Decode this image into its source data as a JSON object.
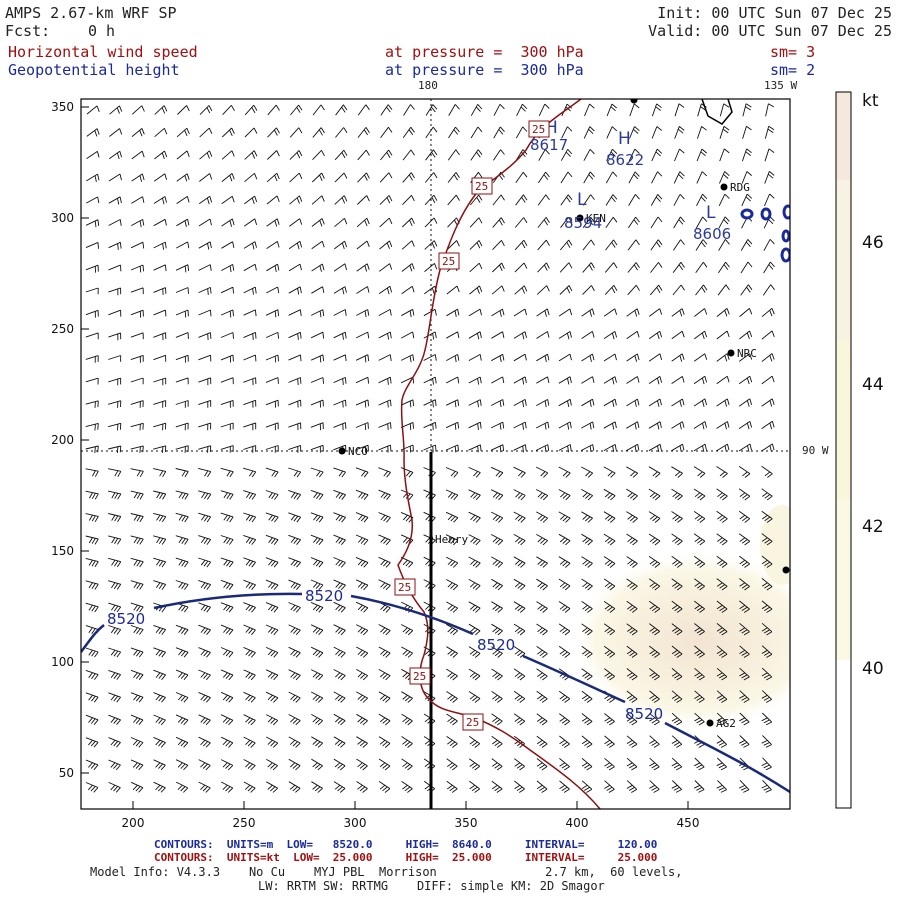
{
  "header": {
    "title": "AMPS 2.67-km WRF SP",
    "init": "Init: 00 UTC Sun 07 Dec 25",
    "fcst_label": "Fcst:",
    "fcst_value": "0 h",
    "valid": "Valid: 00 UTC Sun 07 Dec 25"
  },
  "fields": [
    {
      "name": "Horizontal wind speed",
      "level": "at pressure =  300 hPa",
      "sm": "sm= 3",
      "color": "#a01010"
    },
    {
      "name": "Geopotential height",
      "level": "at pressure =  300 hPa",
      "sm": "sm= 2",
      "color": "#1a2a9a"
    }
  ],
  "top_labels": {
    "lon_180": "180",
    "lon_135w": "135 W"
  },
  "right_labels": {
    "lon_90w": "90 W"
  },
  "x_ticks": [
    "200",
    "250",
    "300",
    "350",
    "400",
    "450"
  ],
  "y_ticks": [
    "350",
    "300",
    "250",
    "200",
    "150",
    "100",
    "50"
  ],
  "colorbar": {
    "unit": "kt",
    "labels": [
      "46",
      "44",
      "42",
      "40"
    ],
    "colors": [
      "#f5e8dc",
      "#f7f2e2",
      "#faf6dc",
      "#fbf9e4",
      "#ffffff"
    ]
  },
  "stations": [
    {
      "label": "NCO"
    },
    {
      "label": "Henry"
    },
    {
      "label": "RDG"
    },
    {
      "label": "NRC"
    },
    {
      "label": "AG2"
    },
    {
      "label": "KEN"
    }
  ],
  "pressure_centers": [
    {
      "letter": "H",
      "value": "8617"
    },
    {
      "letter": "H",
      "value": "8622"
    },
    {
      "letter": "L",
      "value": "8594"
    },
    {
      "letter": "L",
      "value": "8606"
    }
  ],
  "contour_labels": {
    "height": [
      "8520",
      "8520",
      "8520",
      "8520"
    ],
    "speed": [
      "25",
      "25",
      "25",
      "25",
      "25",
      "25"
    ]
  },
  "footer": {
    "contours_line1": "CONTOURS:  UNITS=m  LOW=   8520.0     HIGH=  8640.0     INTERVAL=     120.00",
    "contours_line2": "CONTOURS:  UNITS=kt  LOW=  25.000     HIGH=  25.000     INTERVAL=     25.000",
    "model_line1": "Model Info: V4.3.3    No Cu    MYJ PBL  Morrison               2.7 km,  60 levels,",
    "model_line2": "LW: RRTM SW: RRTMG    DIFF: simple KM: 2D Smagor"
  }
}
